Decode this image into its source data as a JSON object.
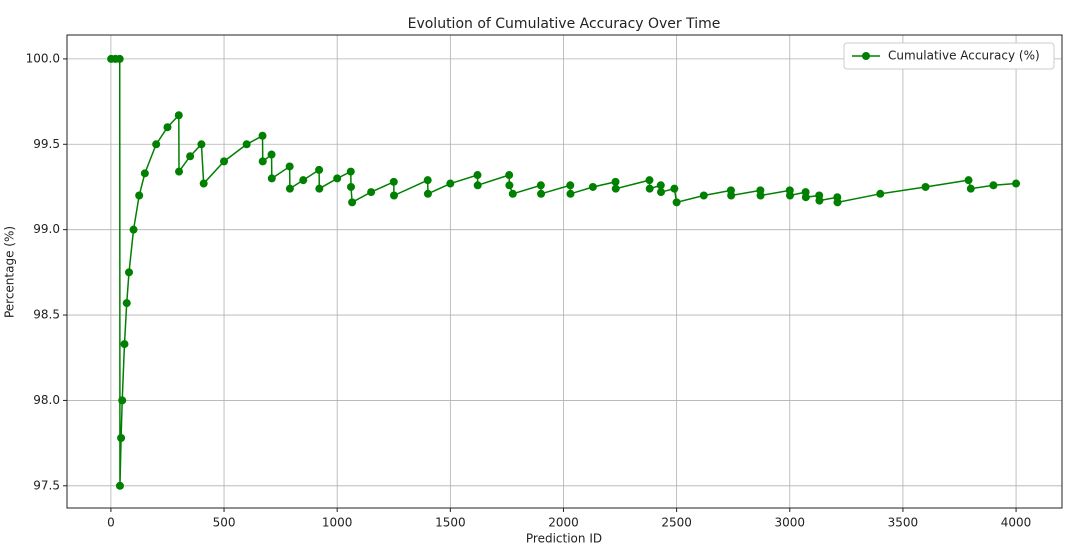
{
  "chart_data": {
    "type": "line",
    "title": "Evolution of Cumulative Accuracy Over Time",
    "xlabel": "Prediction ID",
    "ylabel": "Percentage (%)",
    "x": [
      1,
      20,
      39,
      40,
      45,
      50,
      60,
      70,
      80,
      100,
      125,
      150,
      200,
      250,
      300,
      301,
      350,
      400,
      410,
      500,
      600,
      670,
      671,
      710,
      711,
      790,
      791,
      850,
      920,
      921,
      1000,
      1060,
      1061,
      1066,
      1150,
      1250,
      1251,
      1400,
      1401,
      1500,
      1620,
      1621,
      1760,
      1761,
      1776,
      1900,
      1901,
      2030,
      2031,
      2130,
      2230,
      2231,
      2380,
      2381,
      2430,
      2431,
      2490,
      2500,
      2620,
      2740,
      2741,
      2870,
      2871,
      3000,
      3001,
      3070,
      3071,
      3130,
      3131,
      3210,
      3211,
      3400,
      3600,
      3790,
      3800,
      3900,
      4000
    ],
    "series": [
      {
        "name": "Cumulative Accuracy (%)",
        "color": "#008000",
        "values": [
          100,
          100,
          100,
          97.5,
          97.78,
          98.0,
          98.33,
          98.57,
          98.75,
          99.0,
          99.2,
          99.33,
          99.5,
          99.6,
          99.67,
          99.34,
          99.43,
          99.5,
          99.27,
          99.4,
          99.5,
          99.55,
          99.4,
          99.44,
          99.3,
          99.37,
          99.24,
          99.29,
          99.35,
          99.24,
          99.3,
          99.34,
          99.25,
          99.16,
          99.22,
          99.28,
          99.2,
          99.29,
          99.21,
          99.27,
          99.32,
          99.26,
          99.32,
          99.26,
          99.21,
          99.26,
          99.21,
          99.26,
          99.21,
          99.25,
          99.28,
          99.24,
          99.29,
          99.24,
          99.26,
          99.22,
          99.24,
          99.16,
          99.2,
          99.23,
          99.2,
          99.23,
          99.2,
          99.23,
          99.2,
          99.22,
          99.19,
          99.2,
          99.17,
          99.19,
          99.16,
          99.21,
          99.25,
          99.29,
          99.24,
          99.26,
          99.27
        ]
      }
    ],
    "xlim": [
      -194,
      4203
    ],
    "ylim": [
      97.37,
      100.14
    ],
    "xticks": [
      0,
      500,
      1000,
      1500,
      2000,
      2500,
      3000,
      3500,
      4000
    ],
    "yticks": [
      97.5,
      {
        "value": 98,
        "label": "98.0"
      },
      98.5,
      {
        "value": 99,
        "label": "99.0"
      },
      99.5,
      {
        "value": 100,
        "label": "100.0"
      }
    ],
    "grid": true,
    "legend": "upper right",
    "marker": "o"
  }
}
